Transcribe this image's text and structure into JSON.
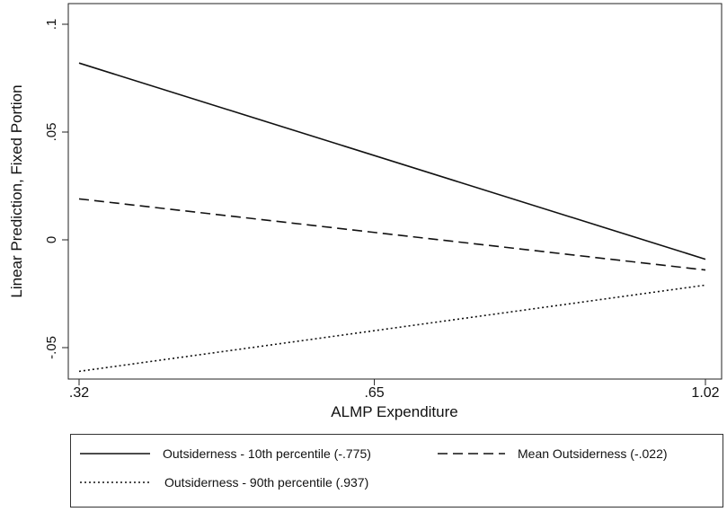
{
  "chart_data": {
    "type": "line",
    "xlabel": "ALMP Expenditure",
    "ylabel": "Linear Prediction, Fixed Portion",
    "x": [
      0.32,
      1.02
    ],
    "xlim": [
      0.32,
      1.02
    ],
    "ylim": [
      -0.065,
      0.1
    ],
    "x_ticks": [
      0.32,
      0.65,
      1.02
    ],
    "x_tick_labels": [
      ".32",
      ".65",
      "1.02"
    ],
    "y_ticks": [
      -0.05,
      0,
      0.05,
      0.1
    ],
    "y_tick_labels": [
      "-.05",
      "0",
      ".05",
      ".1"
    ],
    "grid": false,
    "legend_position": "bottom",
    "series": [
      {
        "name": "Outsiderness - 10th percentile (-.775)",
        "style": "solid",
        "values": [
          0.082,
          -0.009
        ]
      },
      {
        "name": "Mean Outsiderness (-.022)",
        "style": "dashed",
        "values": [
          0.019,
          -0.014
        ]
      },
      {
        "name": "Outsiderness - 90th percentile (.937)",
        "style": "dotted",
        "values": [
          -0.061,
          -0.021
        ]
      }
    ],
    "line_color": "#111111"
  }
}
